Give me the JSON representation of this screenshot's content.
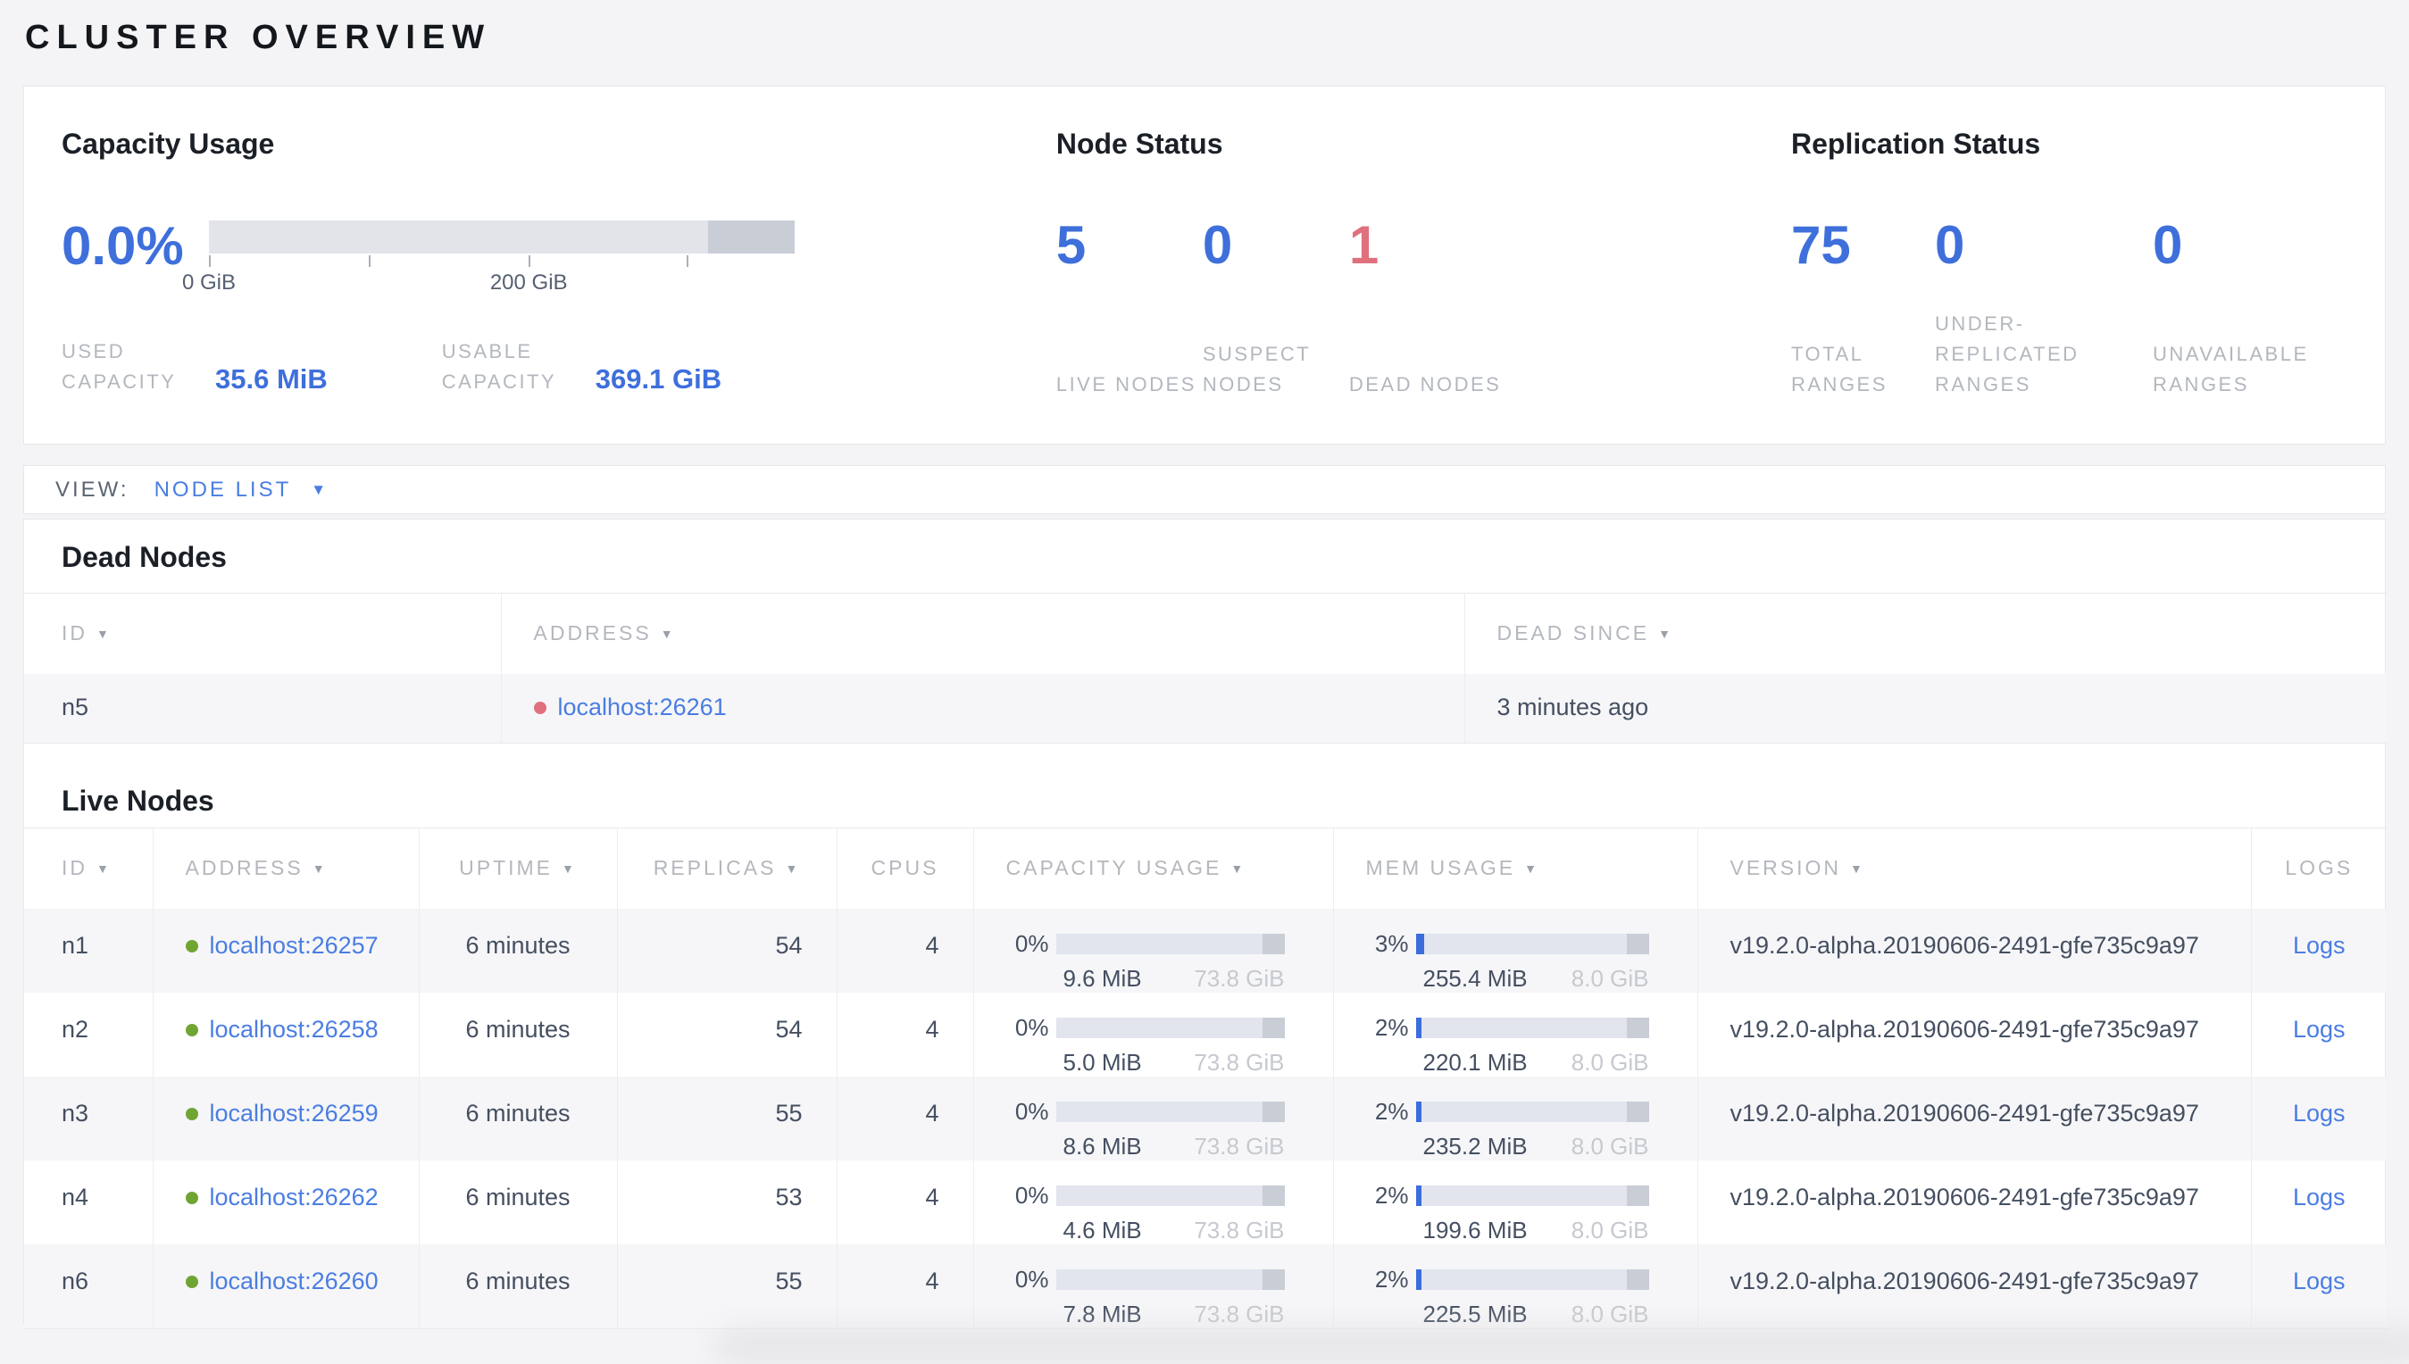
{
  "page": {
    "title": "CLUSTER OVERVIEW"
  },
  "colors": {
    "accent_blue": "#3e6fdb",
    "link_blue": "#4a7de2",
    "dead_red": "#e0707e",
    "live_green": "#70a533",
    "label_gray": "#b3b7bd",
    "bar_light": "#e2e4ea",
    "bar_dark": "#c9cdd6"
  },
  "summary": {
    "capacity": {
      "title": "Capacity Usage",
      "percent": "0.0%",
      "tick_label_0": "0 GiB",
      "tick_label_200": "200 GiB",
      "used_label": "USED CAPACITY",
      "used_value": "35.6 MiB",
      "usable_label": "USABLE CAPACITY",
      "usable_value": "369.1 GiB"
    },
    "node_status": {
      "title": "Node Status",
      "items": [
        {
          "value": "5",
          "label": "LIVE NODES",
          "status": "live"
        },
        {
          "value": "0",
          "label": "SUSPECT NODES",
          "status": "suspect"
        },
        {
          "value": "1",
          "label": "DEAD NODES",
          "status": "dead"
        }
      ]
    },
    "replication": {
      "title": "Replication Status",
      "items": [
        {
          "value": "75",
          "label": "TOTAL RANGES"
        },
        {
          "value": "0",
          "label": "UNDER-REPLICATED RANGES"
        },
        {
          "value": "0",
          "label": "UNAVAILABLE RANGES"
        }
      ]
    }
  },
  "view_bar": {
    "label": "VIEW:",
    "selected": "NODE LIST",
    "caret": "▼"
  },
  "dead_nodes": {
    "title": "Dead Nodes",
    "columns": [
      {
        "label": "ID",
        "sortable": true
      },
      {
        "label": "ADDRESS",
        "sortable": true
      },
      {
        "label": "DEAD SINCE",
        "sortable": true
      }
    ],
    "rows": [
      {
        "id": "n5",
        "address": "localhost:26261",
        "dead_since": "3 minutes ago"
      }
    ]
  },
  "live_nodes": {
    "title": "Live Nodes",
    "columns": [
      {
        "label": "ID",
        "sortable": true
      },
      {
        "label": "ADDRESS",
        "sortable": true
      },
      {
        "label": "UPTIME",
        "sortable": true
      },
      {
        "label": "REPLICAS",
        "sortable": true
      },
      {
        "label": "CPUS",
        "sortable": false
      },
      {
        "label": "CAPACITY USAGE",
        "sortable": true
      },
      {
        "label": "MEM USAGE",
        "sortable": true
      },
      {
        "label": "VERSION",
        "sortable": true
      },
      {
        "label": "LOGS",
        "sortable": false
      }
    ],
    "rows": [
      {
        "id": "n1",
        "address": "localhost:26257",
        "uptime": "6 minutes",
        "replicas": "54",
        "cpus": "4",
        "capacity_pct": "0%",
        "capacity_used": "9.6 MiB",
        "capacity_total": "73.8 GiB",
        "mem_pct": "3%",
        "mem_used": "255.4 MiB",
        "mem_total": "8.0 GiB",
        "version": "v19.2.0-alpha.20190606-2491-gfe735c9a97",
        "logs": "Logs"
      },
      {
        "id": "n2",
        "address": "localhost:26258",
        "uptime": "6 minutes",
        "replicas": "54",
        "cpus": "4",
        "capacity_pct": "0%",
        "capacity_used": "5.0 MiB",
        "capacity_total": "73.8 GiB",
        "mem_pct": "2%",
        "mem_used": "220.1 MiB",
        "mem_total": "8.0 GiB",
        "version": "v19.2.0-alpha.20190606-2491-gfe735c9a97",
        "logs": "Logs"
      },
      {
        "id": "n3",
        "address": "localhost:26259",
        "uptime": "6 minutes",
        "replicas": "55",
        "cpus": "4",
        "capacity_pct": "0%",
        "capacity_used": "8.6 MiB",
        "capacity_total": "73.8 GiB",
        "mem_pct": "2%",
        "mem_used": "235.2 MiB",
        "mem_total": "8.0 GiB",
        "version": "v19.2.0-alpha.20190606-2491-gfe735c9a97",
        "logs": "Logs"
      },
      {
        "id": "n4",
        "address": "localhost:26262",
        "uptime": "6 minutes",
        "replicas": "53",
        "cpus": "4",
        "capacity_pct": "0%",
        "capacity_used": "4.6 MiB",
        "capacity_total": "73.8 GiB",
        "mem_pct": "2%",
        "mem_used": "199.6 MiB",
        "mem_total": "8.0 GiB",
        "version": "v19.2.0-alpha.20190606-2491-gfe735c9a97",
        "logs": "Logs"
      },
      {
        "id": "n6",
        "address": "localhost:26260",
        "uptime": "6 minutes",
        "replicas": "55",
        "cpus": "4",
        "capacity_pct": "0%",
        "capacity_used": "7.8 MiB",
        "capacity_total": "73.8 GiB",
        "mem_pct": "2%",
        "mem_used": "225.5 MiB",
        "mem_total": "8.0 GiB",
        "version": "v19.2.0-alpha.20190606-2491-gfe735c9a97",
        "logs": "Logs"
      }
    ]
  }
}
